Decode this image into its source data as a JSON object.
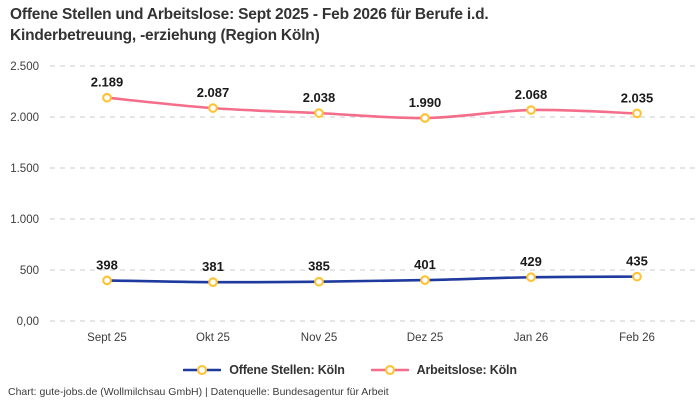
{
  "header": {
    "title_lines": [
      "Offene Stellen und Arbeitslose: Sept 2025 - Feb 2026 für Berufe i.d.",
      "Kinderbetreuung, -erziehung (Region Köln)"
    ]
  },
  "chart_data": {
    "type": "line",
    "title": "Offene Stellen und Arbeitslose: Sept 2025 - Feb 2026 für Berufe i.d. Kinderbetreuung, -erziehung (Region Köln)",
    "categories": [
      "Sept 25",
      "Okt 25",
      "Nov 25",
      "Dez 25",
      "Jan 26",
      "Feb 26"
    ],
    "series": [
      {
        "name": "Offene Stellen: Köln",
        "color": "#1F3A9E",
        "values": [
          398,
          381,
          385,
          401,
          429,
          435
        ],
        "labels": [
          "398",
          "381",
          "385",
          "401",
          "429",
          "435"
        ]
      },
      {
        "name": "Arbeitslose: Köln",
        "color": "#F46E8B",
        "values": [
          2189,
          2087,
          2038,
          1990,
          2068,
          2035
        ],
        "labels": [
          "2.189",
          "2.087",
          "2.038",
          "1.990",
          "2.068",
          "2.035"
        ]
      }
    ],
    "ylim": [
      0,
      2500
    ],
    "yticks": [
      {
        "value": 0,
        "label": "0,00"
      },
      {
        "value": 500,
        "label": "500"
      },
      {
        "value": 1000,
        "label": "1.000"
      },
      {
        "value": 1500,
        "label": "1.500"
      },
      {
        "value": 2000,
        "label": "2.000"
      },
      {
        "value": 2500,
        "label": "2.500"
      }
    ],
    "grid": "horizontal-dashed",
    "legend_position": "bottom-center",
    "marker": {
      "fill": "#FFFFFF",
      "stroke": "#FFC233"
    },
    "colors": {
      "grid": "#CBCBCB",
      "tick_text": "#3D3D3D",
      "data_label": "#1A1A1A",
      "title": "#333333",
      "footer": "#3C3C3C"
    }
  },
  "footer": {
    "credit": "Chart: gute-jobs.de (Wollmilchsau GmbH) | Datenquelle: Bundesagentur für Arbeit"
  }
}
